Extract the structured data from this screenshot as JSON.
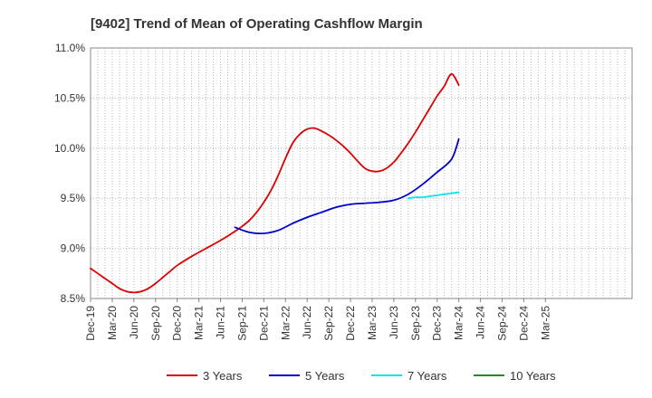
{
  "chart_data": {
    "type": "line",
    "title": "[9402]  Trend of Mean of Operating Cashflow Margin",
    "xlabel": "",
    "ylabel": "",
    "ylim": [
      8.5,
      11.0
    ],
    "y_ticks": [
      "8.5%",
      "9.0%",
      "9.5%",
      "10.0%",
      "10.5%",
      "11.0%"
    ],
    "y_tick_values": [
      8.5,
      9.0,
      9.5,
      10.0,
      10.5,
      11.0
    ],
    "x_range_months": [
      0,
      75
    ],
    "x_tick_labels": [
      "Dec-19",
      "Mar-20",
      "Jun-20",
      "Sep-20",
      "Dec-20",
      "Mar-21",
      "Jun-21",
      "Sep-21",
      "Dec-21",
      "Mar-22",
      "Jun-22",
      "Sep-22",
      "Dec-22",
      "Mar-23",
      "Jun-23",
      "Sep-23",
      "Dec-23",
      "Mar-24",
      "Jun-24",
      "Sep-24",
      "Dec-24",
      "Mar-25"
    ],
    "x_tick_months": [
      0,
      3,
      6,
      9,
      12,
      15,
      18,
      21,
      24,
      27,
      30,
      33,
      36,
      39,
      42,
      45,
      48,
      51,
      54,
      57,
      60,
      63
    ],
    "grid": true,
    "legend_position": "bottom",
    "series": [
      {
        "name": "3 Years",
        "color": "#dd0000",
        "x": [
          0,
          2,
          3,
          4,
          5,
          6,
          7,
          8,
          9,
          10,
          11,
          12,
          14,
          16,
          18,
          20,
          21,
          22,
          23,
          24,
          25,
          26,
          27,
          28,
          29,
          30,
          31,
          32,
          33,
          34,
          35,
          36,
          37,
          38,
          39,
          40,
          41,
          42,
          43,
          44,
          45,
          46,
          47,
          48,
          49,
          50,
          51
        ],
        "y": [
          8.8,
          8.7,
          8.65,
          8.6,
          8.57,
          8.56,
          8.57,
          8.6,
          8.65,
          8.71,
          8.77,
          8.83,
          8.92,
          9.0,
          9.08,
          9.17,
          9.22,
          9.28,
          9.36,
          9.46,
          9.58,
          9.73,
          9.9,
          10.05,
          10.14,
          10.19,
          10.2,
          10.17,
          10.13,
          10.08,
          10.02,
          9.95,
          9.87,
          9.8,
          9.77,
          9.77,
          9.8,
          9.86,
          9.95,
          10.05,
          10.16,
          10.28,
          10.4,
          10.52,
          10.62,
          10.74,
          10.63
        ]
      },
      {
        "name": "5 Years",
        "color": "#0000cc",
        "x": [
          20,
          22,
          24,
          26,
          28,
          30,
          32,
          34,
          36,
          38,
          40,
          42,
          44,
          46,
          48,
          50,
          51
        ],
        "y": [
          9.21,
          9.16,
          9.15,
          9.18,
          9.25,
          9.31,
          9.36,
          9.41,
          9.44,
          9.45,
          9.46,
          9.48,
          9.54,
          9.64,
          9.76,
          9.89,
          10.09
        ]
      },
      {
        "name": "7 Years",
        "color": "#00e5ee",
        "x": [
          44,
          45,
          46,
          47,
          48,
          49,
          50,
          51
        ],
        "y": [
          9.5,
          9.51,
          9.51,
          9.52,
          9.53,
          9.54,
          9.55,
          9.56
        ]
      },
      {
        "name": "10 Years",
        "color": "#228b22",
        "x": [],
        "y": []
      }
    ]
  }
}
